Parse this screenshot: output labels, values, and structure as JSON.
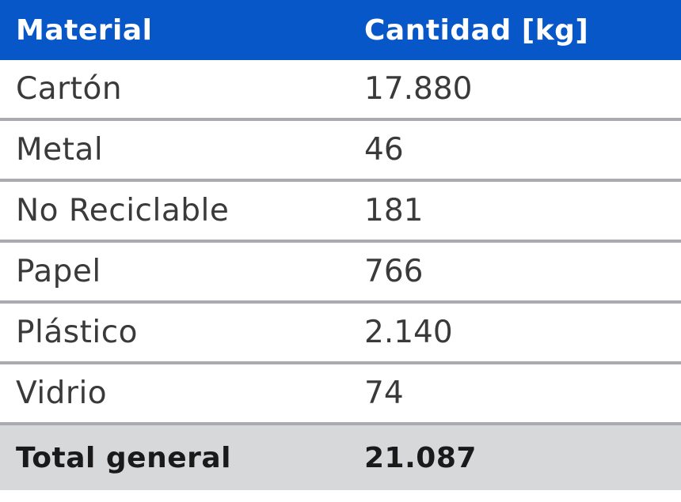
{
  "table": {
    "headers": {
      "material": "Material",
      "cantidad": "Cantidad [kg]"
    },
    "rows": [
      {
        "material": "Cartón",
        "cantidad": "17.880"
      },
      {
        "material": "Metal",
        "cantidad": "46"
      },
      {
        "material": "No Reciclable",
        "cantidad": "181"
      },
      {
        "material": "Papel",
        "cantidad": "766"
      },
      {
        "material": "Plástico",
        "cantidad": "2.140"
      },
      {
        "material": "Vidrio",
        "cantidad": "74"
      }
    ],
    "total": {
      "label": "Total general",
      "value": "21.087"
    }
  },
  "colors": {
    "header_bg": "#0757c8",
    "total_bg": "#d7d8da",
    "divider": "#a9abb0"
  }
}
